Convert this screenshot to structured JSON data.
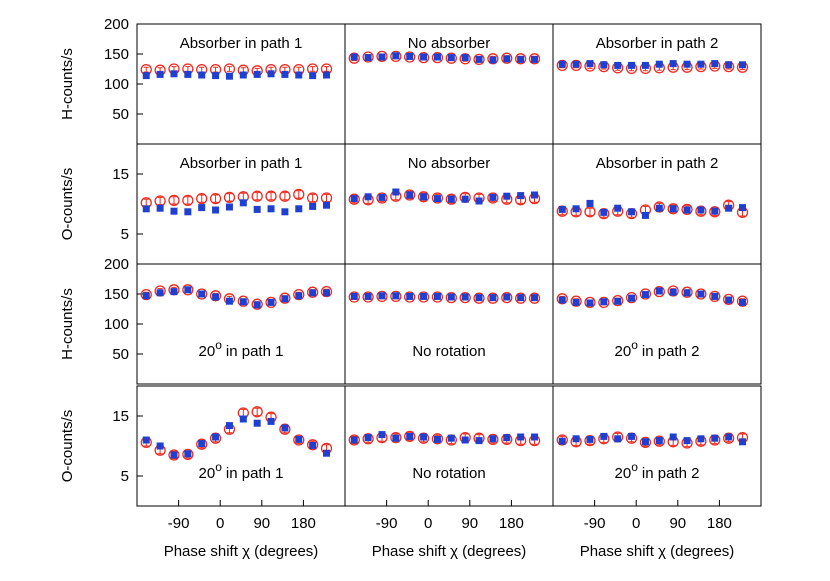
{
  "chart_data": [
    {
      "type": "scatter",
      "label": {
        "text": "Absorber in path 1"
      },
      "label_position": "top",
      "ylabel": "H-counts/s",
      "xlim": [
        -180,
        270
      ],
      "ylim": [
        0,
        200
      ],
      "yticks": [
        50,
        100,
        150,
        200
      ],
      "x": [
        -160,
        -130,
        -100,
        -70,
        -40,
        -10,
        20,
        50,
        80,
        110,
        140,
        170,
        200,
        230
      ],
      "series": [
        {
          "color": "#ee2a1f",
          "marker": "circle",
          "error": 4,
          "values": [
            124,
            123,
            125,
            125,
            124,
            124,
            125,
            123,
            122,
            124,
            124,
            124,
            125,
            125
          ]
        },
        {
          "color": "#1f3fd0",
          "marker": "square",
          "values": [
            114,
            116,
            117,
            116,
            115,
            114,
            113,
            115,
            116,
            117,
            116,
            115,
            114,
            115
          ]
        }
      ]
    },
    {
      "type": "scatter",
      "label": {
        "text": "No absorber"
      },
      "label_position": "top",
      "xlim": [
        -180,
        270
      ],
      "ylim": [
        0,
        200
      ],
      "x": [
        -160,
        -130,
        -100,
        -70,
        -40,
        -10,
        20,
        50,
        80,
        110,
        140,
        170,
        200,
        230
      ],
      "series": [
        {
          "color": "#ee2a1f",
          "marker": "circle",
          "error": 4,
          "values": [
            143,
            145,
            146,
            146,
            145,
            144,
            144,
            143,
            142,
            141,
            142,
            143,
            142,
            142
          ]
        },
        {
          "color": "#1f3fd0",
          "marker": "square",
          "values": [
            145,
            144,
            145,
            147,
            146,
            145,
            145,
            144,
            144,
            141,
            140,
            142,
            141,
            141
          ]
        }
      ]
    },
    {
      "type": "scatter",
      "label": {
        "text": "Absorber in path 2"
      },
      "label_position": "top",
      "xlim": [
        -180,
        270
      ],
      "ylim": [
        0,
        200
      ],
      "x": [
        -160,
        -130,
        -100,
        -70,
        -40,
        -10,
        20,
        50,
        80,
        110,
        140,
        170,
        200,
        230
      ],
      "series": [
        {
          "color": "#ee2a1f",
          "marker": "circle",
          "error": 4,
          "values": [
            131,
            131,
            130,
            129,
            127,
            126,
            126,
            127,
            128,
            128,
            129,
            130,
            129,
            128
          ]
        },
        {
          "color": "#1f3fd0",
          "marker": "square",
          "values": [
            133,
            133,
            134,
            132,
            131,
            131,
            131,
            133,
            134,
            133,
            133,
            134,
            132,
            132
          ]
        }
      ]
    },
    {
      "type": "scatter",
      "label": {
        "text": "Absorber in path 1"
      },
      "label_position": "top",
      "ylabel": "O-counts/s",
      "xlim": [
        -180,
        270
      ],
      "ylim": [
        0,
        20
      ],
      "yticks": [
        5,
        15
      ],
      "x": [
        -160,
        -130,
        -100,
        -70,
        -40,
        -10,
        20,
        50,
        80,
        110,
        140,
        170,
        200,
        230
      ],
      "series": [
        {
          "color": "#ee2a1f",
          "marker": "circle",
          "error": 0.6,
          "values": [
            10.2,
            10.5,
            10.6,
            10.6,
            10.9,
            10.9,
            11.1,
            11.2,
            11.3,
            11.3,
            11.3,
            11.6,
            11.0,
            11.0
          ]
        },
        {
          "color": "#1f3fd0",
          "marker": "square",
          "values": [
            9.2,
            9.3,
            8.8,
            8.7,
            9.4,
            9.0,
            9.5,
            10.2,
            9.1,
            9.2,
            8.7,
            9.2,
            9.6,
            9.8
          ]
        }
      ]
    },
    {
      "type": "scatter",
      "label": {
        "text": "No absorber"
      },
      "label_position": "top",
      "xlim": [
        -180,
        270
      ],
      "ylim": [
        0,
        20
      ],
      "x": [
        -160,
        -130,
        -100,
        -70,
        -40,
        -10,
        20,
        50,
        80,
        110,
        140,
        170,
        200,
        230
      ],
      "series": [
        {
          "color": "#ee2a1f",
          "marker": "circle",
          "error": 0.6,
          "values": [
            10.8,
            10.7,
            11.0,
            11.3,
            11.5,
            11.2,
            11.0,
            10.8,
            11.1,
            11.0,
            11.0,
            10.8,
            10.7,
            10.9
          ]
        },
        {
          "color": "#1f3fd0",
          "marker": "square",
          "values": [
            10.9,
            11.2,
            11.1,
            12.0,
            11.5,
            11.2,
            10.9,
            10.8,
            10.8,
            10.5,
            11.1,
            11.3,
            11.4,
            11.5
          ]
        }
      ]
    },
    {
      "type": "scatter",
      "label": {
        "text": "Absorber in path 2"
      },
      "label_position": "top",
      "xlim": [
        -180,
        270
      ],
      "ylim": [
        0,
        20
      ],
      "x": [
        -160,
        -130,
        -100,
        -70,
        -40,
        -10,
        20,
        50,
        80,
        110,
        140,
        170,
        200,
        230
      ],
      "series": [
        {
          "color": "#ee2a1f",
          "marker": "circle",
          "error": 0.6,
          "values": [
            8.8,
            8.7,
            8.7,
            8.4,
            8.8,
            8.4,
            9.0,
            9.5,
            9.2,
            9.1,
            8.8,
            8.7,
            9.8,
            8.6
          ]
        },
        {
          "color": "#1f3fd0",
          "marker": "square",
          "values": [
            9.1,
            9.2,
            10.1,
            8.6,
            9.3,
            8.7,
            8.1,
            9.3,
            9.2,
            9.0,
            9.0,
            8.8,
            9.3,
            9.4
          ]
        }
      ]
    },
    {
      "type": "scatter",
      "label": {
        "text": "20",
        "sup": "o",
        "rest": "in path 1"
      },
      "label_position": "bottom",
      "ylabel": "H-counts/s",
      "xlim": [
        -180,
        270
      ],
      "ylim": [
        0,
        200
      ],
      "yticks": [
        50,
        100,
        150,
        200
      ],
      "x": [
        -160,
        -130,
        -100,
        -70,
        -40,
        -10,
        20,
        50,
        80,
        110,
        140,
        170,
        200,
        230
      ],
      "series": [
        {
          "color": "#ee2a1f",
          "marker": "circle",
          "error": 4,
          "values": [
            149,
            155,
            157,
            157,
            150,
            147,
            142,
            138,
            133,
            136,
            143,
            149,
            153,
            154
          ]
        },
        {
          "color": "#1f3fd0",
          "marker": "square",
          "values": [
            147,
            152,
            154,
            157,
            150,
            145,
            138,
            137,
            132,
            136,
            142,
            147,
            152,
            152
          ]
        }
      ]
    },
    {
      "type": "scatter",
      "label": {
        "text": "No rotation"
      },
      "label_position": "bottom",
      "xlim": [
        -180,
        270
      ],
      "ylim": [
        0,
        200
      ],
      "x": [
        -160,
        -130,
        -100,
        -70,
        -40,
        -10,
        20,
        50,
        80,
        110,
        140,
        170,
        200,
        230
      ],
      "series": [
        {
          "color": "#ee2a1f",
          "marker": "circle",
          "error": 4,
          "values": [
            145,
            145,
            146,
            146,
            145,
            145,
            145,
            144,
            144,
            143,
            143,
            144,
            143,
            143
          ]
        },
        {
          "color": "#1f3fd0",
          "marker": "square",
          "values": [
            146,
            146,
            147,
            147,
            146,
            146,
            146,
            145,
            145,
            144,
            144,
            145,
            144,
            144
          ]
        }
      ]
    },
    {
      "type": "scatter",
      "label": {
        "text": "20",
        "sup": "o",
        "rest": "in path 2"
      },
      "label_position": "bottom",
      "xlim": [
        -180,
        270
      ],
      "ylim": [
        0,
        200
      ],
      "x": [
        -160,
        -130,
        -100,
        -70,
        -40,
        -10,
        20,
        50,
        80,
        110,
        140,
        170,
        200,
        230
      ],
      "series": [
        {
          "color": "#ee2a1f",
          "marker": "circle",
          "error": 4,
          "values": [
            142,
            138,
            136,
            136,
            139,
            144,
            150,
            154,
            155,
            153,
            150,
            146,
            141,
            138
          ]
        },
        {
          "color": "#1f3fd0",
          "marker": "square",
          "values": [
            140,
            136,
            135,
            137,
            138,
            143,
            149,
            155,
            153,
            152,
            150,
            146,
            140,
            136
          ]
        }
      ]
    },
    {
      "type": "scatter",
      "label": {
        "text": "20",
        "sup": "o",
        "rest": "in path 1"
      },
      "label_position": "bottom",
      "ylabel": "O-counts/s",
      "xlabel": "Phase shift χ (degrees)",
      "xlim": [
        -180,
        270
      ],
      "ylim": [
        0,
        20
      ],
      "yticks": [
        5,
        15
      ],
      "xticks": [
        -90,
        0,
        90,
        180
      ],
      "x": [
        -160,
        -130,
        -100,
        -70,
        -40,
        -10,
        20,
        50,
        80,
        110,
        140,
        170,
        200,
        230
      ],
      "series": [
        {
          "color": "#ee2a1f",
          "marker": "circle",
          "error": 0.6,
          "values": [
            10.6,
            9.3,
            8.5,
            8.6,
            10.3,
            11.3,
            12.8,
            15.5,
            15.7,
            14.8,
            12.8,
            11.0,
            10.2,
            9.6
          ]
        },
        {
          "color": "#1f3fd0",
          "marker": "square",
          "values": [
            11.0,
            10.0,
            8.5,
            8.7,
            10.4,
            11.5,
            13.4,
            14.5,
            13.8,
            14.1,
            13.0,
            11.1,
            10.1,
            8.8
          ]
        }
      ]
    },
    {
      "type": "scatter",
      "label": {
        "text": "No rotation"
      },
      "label_position": "bottom",
      "xlabel": "Phase shift χ (degrees)",
      "xlim": [
        -180,
        270
      ],
      "ylim": [
        0,
        20
      ],
      "xticks": [
        -90,
        0,
        90,
        180
      ],
      "x": [
        -160,
        -130,
        -100,
        -70,
        -40,
        -10,
        20,
        50,
        80,
        110,
        140,
        170,
        200,
        230
      ],
      "series": [
        {
          "color": "#ee2a1f",
          "marker": "circle",
          "error": 0.6,
          "values": [
            11.0,
            11.2,
            11.4,
            11.4,
            11.6,
            11.3,
            11.2,
            11.0,
            11.4,
            11.3,
            11.1,
            11.1,
            10.9,
            10.9
          ]
        },
        {
          "color": "#1f3fd0",
          "marker": "square",
          "values": [
            11.0,
            11.4,
            11.9,
            11.3,
            11.6,
            11.5,
            11.1,
            11.3,
            11.0,
            10.9,
            11.2,
            11.4,
            11.5,
            11.5
          ]
        }
      ]
    },
    {
      "type": "scatter",
      "label": {
        "text": "20",
        "sup": "o",
        "rest": "in path 2"
      },
      "label_position": "bottom",
      "xlabel": "Phase shift χ (degrees)",
      "xlim": [
        -180,
        270
      ],
      "ylim": [
        0,
        20
      ],
      "xticks": [
        -90,
        0,
        90,
        180
      ],
      "x": [
        -160,
        -130,
        -100,
        -70,
        -40,
        -10,
        20,
        50,
        80,
        110,
        140,
        170,
        200,
        230
      ],
      "series": [
        {
          "color": "#ee2a1f",
          "marker": "circle",
          "error": 0.6,
          "values": [
            11.0,
            10.7,
            10.9,
            11.2,
            11.5,
            11.3,
            10.6,
            10.8,
            10.7,
            10.5,
            10.8,
            11.0,
            11.3,
            11.4
          ]
        },
        {
          "color": "#1f3fd0",
          "marker": "square",
          "values": [
            10.8,
            11.2,
            11.1,
            11.6,
            11.2,
            11.6,
            10.7,
            10.9,
            11.5,
            10.9,
            11.2,
            11.3,
            11.5,
            10.7
          ]
        }
      ]
    }
  ]
}
